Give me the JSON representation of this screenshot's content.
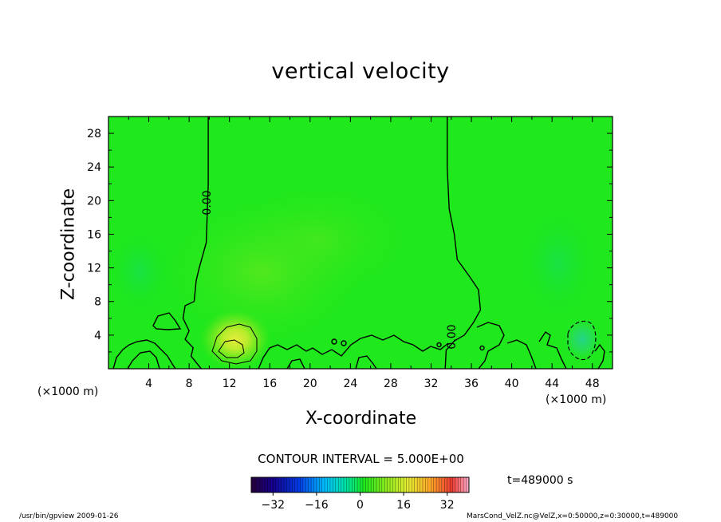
{
  "chart_data": {
    "type": "heatmap",
    "title": "vertical velocity",
    "xlabel": "X-coordinate",
    "ylabel": "Z-coordinate",
    "x_unit_label": "(×1000 m)",
    "x_unit_label_right": "(×1000 m)",
    "xlim": [
      0,
      50
    ],
    "ylim": [
      0,
      30
    ],
    "x_ticks": [
      4,
      8,
      12,
      16,
      20,
      24,
      28,
      32,
      36,
      40,
      44,
      48
    ],
    "y_ticks": [
      4,
      8,
      12,
      16,
      20,
      24,
      28
    ],
    "contour_interval_text": "CONTOUR INTERVAL = 5.000E+00",
    "contour_labels": [
      "0.00",
      "0.00"
    ],
    "time_text": "t=489000 s",
    "colorbar": {
      "range": [
        -40,
        40
      ],
      "ticks": [
        -32,
        -16,
        0,
        16,
        32
      ],
      "tick_labels": [
        "−32",
        "−16",
        "0",
        "16",
        "32"
      ]
    },
    "zero_contours": [
      {
        "name": "zero-contour-left",
        "points": [
          [
            9.9,
            30
          ],
          [
            9.9,
            22
          ],
          [
            9.7,
            15
          ],
          [
            9,
            12
          ],
          [
            8.7,
            10.5
          ],
          [
            8.5,
            8
          ],
          [
            7.6,
            7.5
          ],
          [
            7.4,
            6
          ],
          [
            8,
            4.5
          ],
          [
            7.6,
            3.5
          ],
          [
            8.4,
            2.5
          ],
          [
            8.2,
            1.5
          ],
          [
            9.2,
            0
          ]
        ]
      },
      {
        "name": "zero-contour-right",
        "points": [
          [
            33.6,
            30
          ],
          [
            33.6,
            24
          ],
          [
            33.8,
            19
          ],
          [
            34.3,
            16
          ],
          [
            34.6,
            13
          ],
          [
            35.8,
            11
          ],
          [
            36.7,
            9.4
          ],
          [
            36.9,
            7
          ],
          [
            36.2,
            5.5
          ],
          [
            35.3,
            4
          ],
          [
            34.3,
            3.3
          ],
          [
            33.5,
            2.2
          ],
          [
            33.4,
            0
          ]
        ]
      }
    ],
    "features": [
      {
        "name": "positive-updraft-core",
        "x": 12.5,
        "z": 2.8,
        "value": 12
      },
      {
        "name": "negative-downdraft-core",
        "x": 47.5,
        "z": 3.2,
        "value": -8
      }
    ],
    "colors": {
      "background_field": "#1fe81c",
      "contour": "#000000"
    }
  },
  "footer": {
    "left": "/usr/bin/gpview   2009-01-26",
    "right": "MarsCond_VelZ.nc@VelZ,x=0:50000,z=0:30000,t=489000"
  }
}
